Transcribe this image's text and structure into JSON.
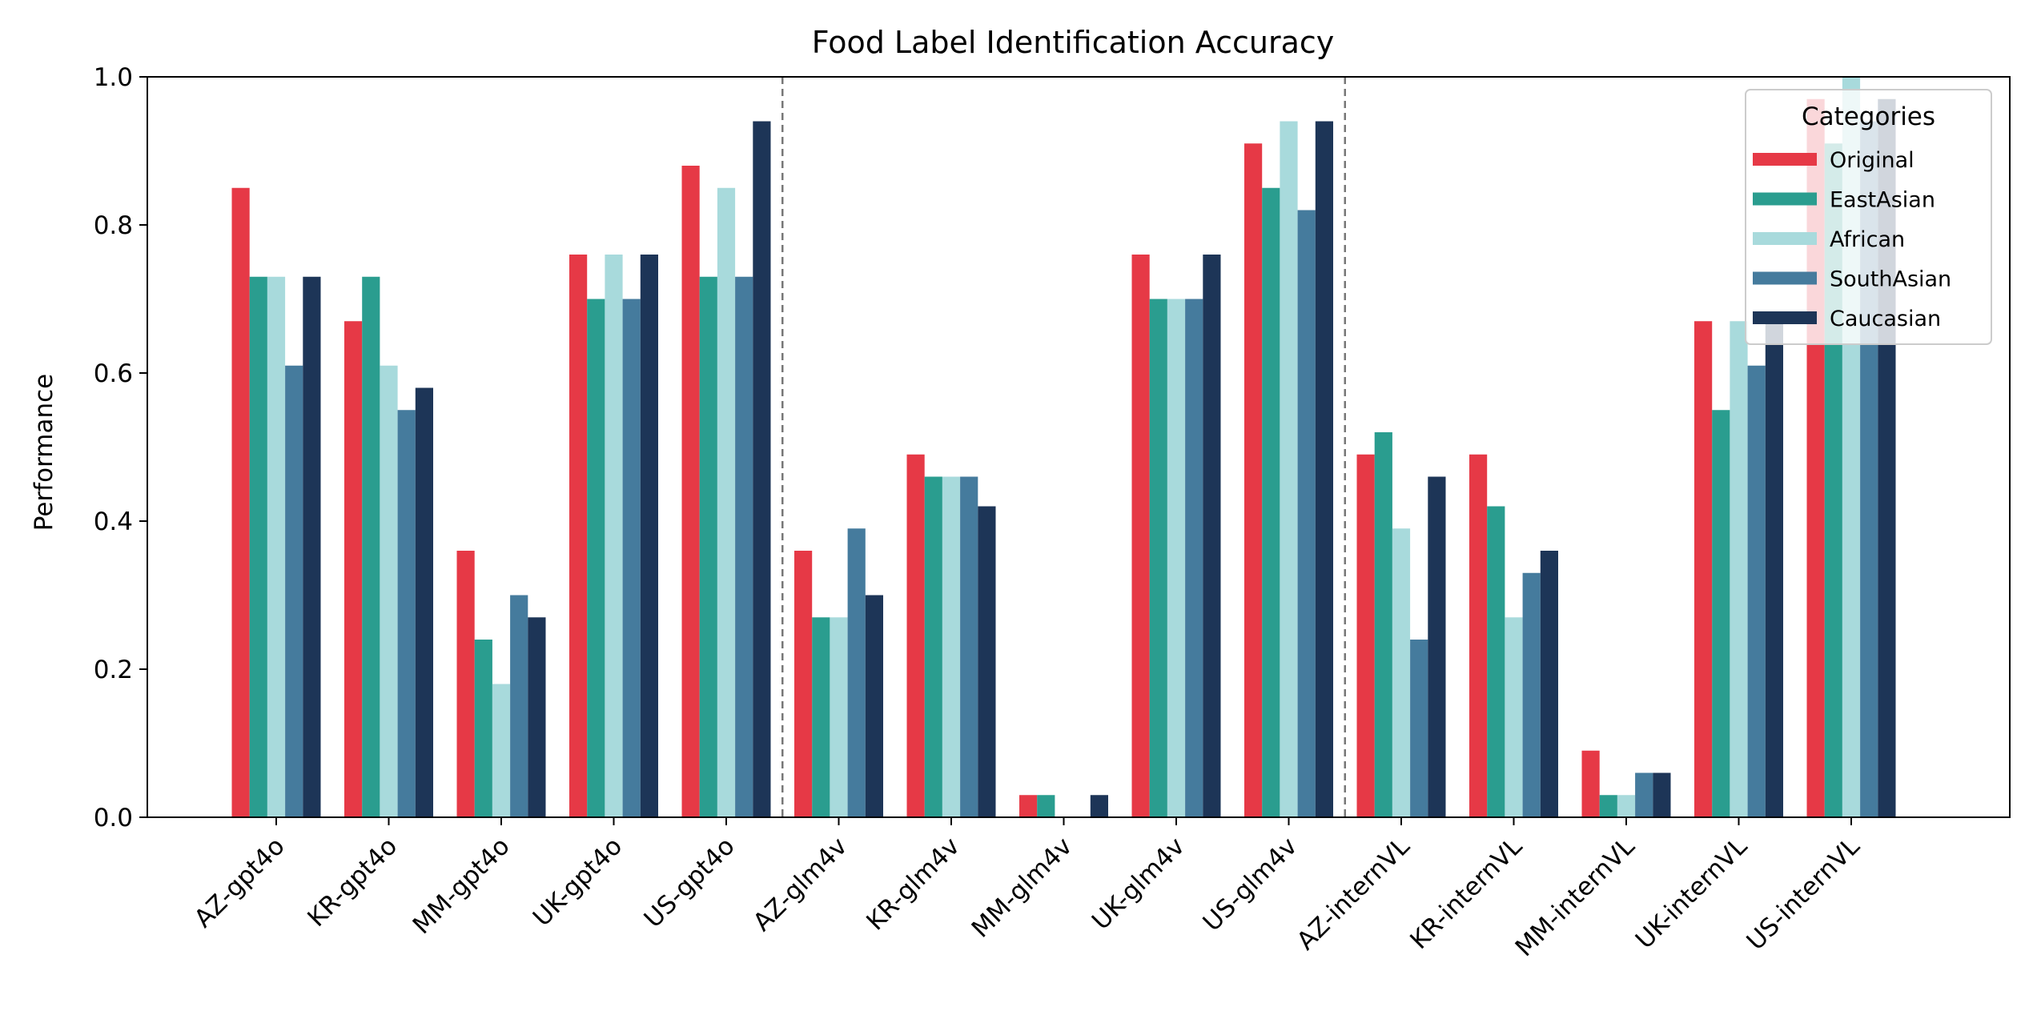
{
  "chart_data": {
    "type": "bar",
    "title": "Food Label Identification Accuracy",
    "xlabel": "",
    "ylabel": "Performance",
    "ylim": [
      0,
      1.0
    ],
    "yticks": [
      "0.0",
      "0.2",
      "0.4",
      "0.6",
      "0.8",
      "1.0"
    ],
    "grid": false,
    "legend": {
      "title": "Categories",
      "placement": "top-right"
    },
    "categories": [
      "AZ-gpt4o",
      "KR-gpt4o",
      "MM-gpt4o",
      "UK-gpt4o",
      "US-gpt4o",
      "AZ-glm4v",
      "KR-glm4v",
      "MM-glm4v",
      "UK-glm4v",
      "US-glm4v",
      "AZ-internVL",
      "KR-internVL",
      "MM-internVL",
      "UK-internVL",
      "US-internVL"
    ],
    "group_separators_after": [
      4,
      9
    ],
    "series": [
      {
        "name": "Original",
        "color": "#e63946",
        "values": [
          0.85,
          0.67,
          0.36,
          0.76,
          0.88,
          0.36,
          0.49,
          0.03,
          0.76,
          0.91,
          0.49,
          0.49,
          0.09,
          0.67,
          0.97
        ]
      },
      {
        "name": "EastAsian",
        "color": "#2a9d8f",
        "values": [
          0.73,
          0.73,
          0.24,
          0.7,
          0.73,
          0.27,
          0.46,
          0.03,
          0.7,
          0.85,
          0.52,
          0.42,
          0.03,
          0.55,
          0.91
        ]
      },
      {
        "name": "African",
        "color": "#a8dadc",
        "values": [
          0.73,
          0.61,
          0.18,
          0.76,
          0.85,
          0.27,
          0.46,
          0.0,
          0.7,
          0.94,
          0.39,
          0.27,
          0.03,
          0.67,
          1.0
        ]
      },
      {
        "name": "SouthAsian",
        "color": "#457b9d",
        "values": [
          0.61,
          0.55,
          0.3,
          0.7,
          0.73,
          0.39,
          0.46,
          0.0,
          0.7,
          0.82,
          0.24,
          0.33,
          0.06,
          0.61,
          0.94
        ]
      },
      {
        "name": "Caucasian",
        "color": "#1d3557",
        "values": [
          0.73,
          0.58,
          0.27,
          0.76,
          0.94,
          0.3,
          0.42,
          0.03,
          0.76,
          0.94,
          0.46,
          0.36,
          0.06,
          0.67,
          0.97
        ]
      }
    ]
  }
}
